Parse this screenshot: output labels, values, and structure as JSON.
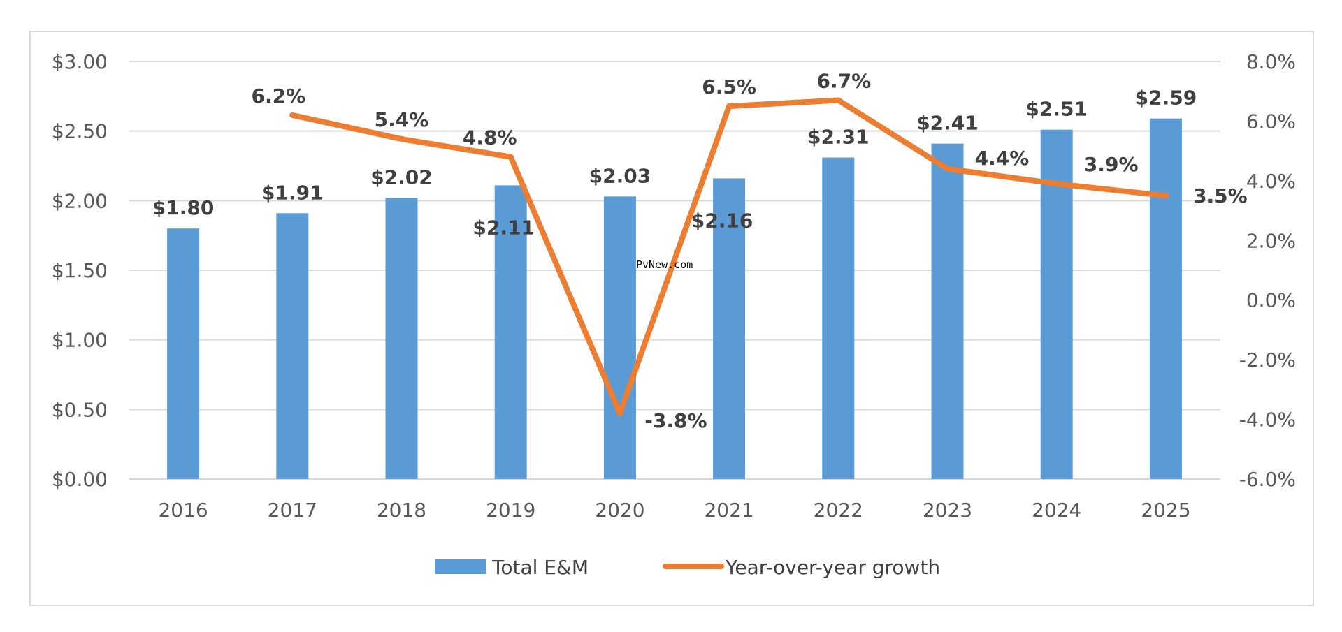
{
  "chart_data": {
    "type": "bar",
    "categories": [
      "2016",
      "2017",
      "2018",
      "2019",
      "2020",
      "2021",
      "2022",
      "2023",
      "2024",
      "2025"
    ],
    "series": [
      {
        "name": "Total E&M",
        "kind": "bar",
        "axis": "left",
        "color": "#5b9bd5",
        "values": [
          1.8,
          1.91,
          2.02,
          2.11,
          2.03,
          2.16,
          2.31,
          2.41,
          2.51,
          2.59
        ],
        "labels": [
          "$1.80",
          "$1.91",
          "$2.02",
          "$2.11",
          "$2.03",
          "$2.16",
          "$2.31",
          "$2.41",
          "$2.51",
          "$2.59"
        ]
      },
      {
        "name": "Year-over-year growth",
        "kind": "line",
        "axis": "right",
        "color": "#ed7d31",
        "values": [
          null,
          6.2,
          5.4,
          4.8,
          -3.8,
          6.5,
          6.7,
          4.4,
          3.9,
          3.5
        ],
        "labels": [
          "",
          "6.2%",
          "5.4%",
          "4.8%",
          "-3.8%",
          "6.5%",
          "6.7%",
          "4.4%",
          "3.9%",
          "3.5%"
        ]
      }
    ],
    "left_axis": {
      "ylim": [
        0,
        3
      ],
      "ticks": [
        0,
        0.5,
        1,
        1.5,
        2,
        2.5,
        3
      ],
      "tick_labels": [
        "$0.00",
        "$0.50",
        "$1.00",
        "$1.50",
        "$2.00",
        "$2.50",
        "$3.00"
      ]
    },
    "right_axis": {
      "ylim": [
        -6,
        8
      ],
      "ticks": [
        -6,
        -4,
        -2,
        0,
        2,
        4,
        6,
        8
      ],
      "tick_labels": [
        "-6.0%",
        "-4.0%",
        "-2.0%",
        "0.0%",
        "2.0%",
        "4.0%",
        "6.0%",
        "8.0%"
      ]
    },
    "grid": true,
    "legend_position": "bottom",
    "legend": [
      "Total E&M",
      "Year-over-year growth"
    ],
    "watermark": "PvNew.com",
    "title": "",
    "xlabel": "",
    "ylabel": ""
  }
}
